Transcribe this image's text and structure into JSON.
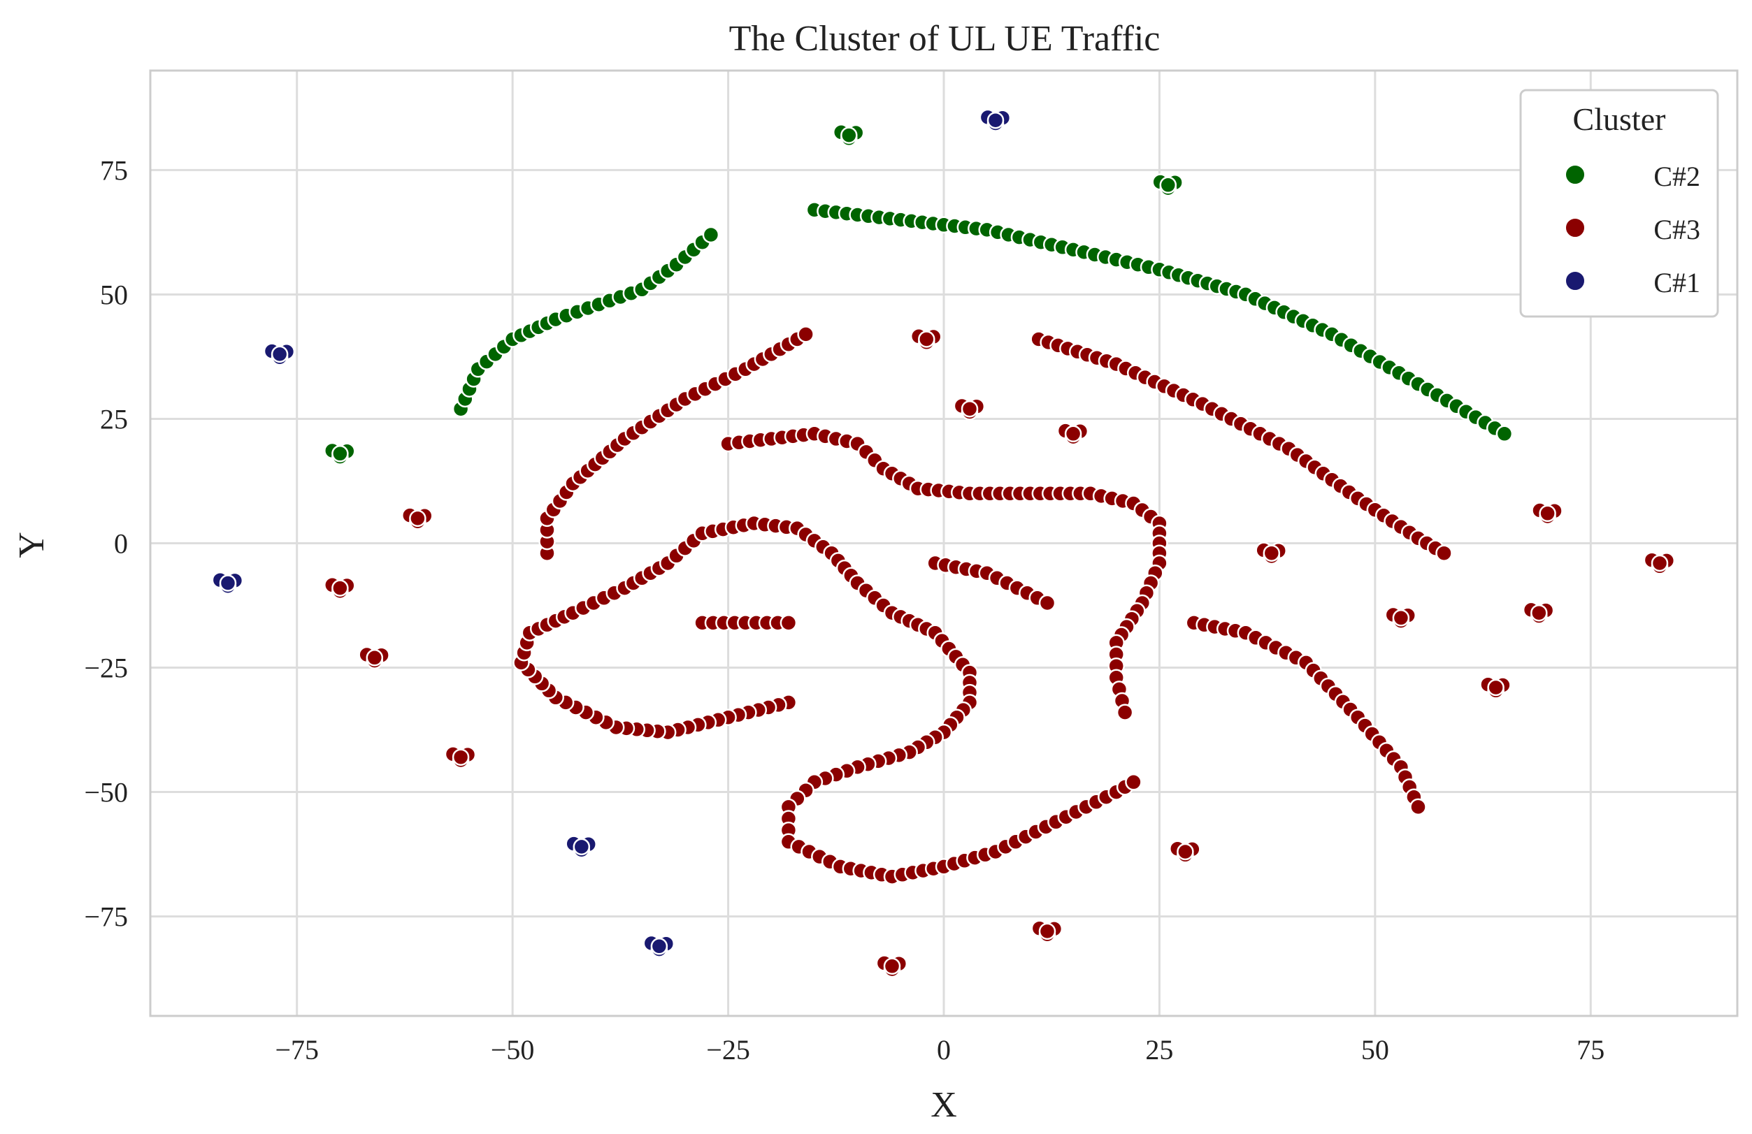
{
  "chart_data": {
    "type": "scatter",
    "title": "The Cluster of UL UE Traffic",
    "xlabel": "X",
    "ylabel": "Y",
    "xlim": [
      -92,
      92
    ],
    "ylim": [
      -95,
      95
    ],
    "x_ticks": [
      -75,
      -50,
      -25,
      0,
      25,
      50,
      75
    ],
    "y_ticks": [
      75,
      50,
      25,
      0,
      -25,
      -50,
      -75
    ],
    "x_tick_labels": [
      "−75",
      "−50",
      "−25",
      "0",
      "25",
      "50",
      "75"
    ],
    "y_tick_labels": [
      "75",
      "50",
      "25",
      "0",
      "−25",
      "−50",
      "−75"
    ],
    "grid": true,
    "legend": {
      "title": "Cluster",
      "position": "top-right",
      "entries": [
        {
          "label": "C#2",
          "color": "#006400"
        },
        {
          "label": "C#3",
          "color": "#8b0000"
        },
        {
          "label": "C#1",
          "color": "#191970"
        }
      ]
    },
    "series": [
      {
        "name": "C#2",
        "color": "#006400",
        "blobs": [
          [
            -11,
            82
          ],
          [
            26,
            72
          ],
          [
            -70,
            18
          ]
        ],
        "curves": [
          [
            [
              -56,
              27
            ],
            [
              -54,
              35
            ],
            [
              -50,
              41
            ],
            [
              -45,
              45
            ],
            [
              -40,
              48
            ],
            [
              -35,
              51
            ],
            [
              -31,
              56
            ],
            [
              -27,
              62
            ]
          ],
          [
            [
              -15,
              67
            ],
            [
              -5,
              65
            ],
            [
              5,
              63
            ],
            [
              15,
              59
            ],
            [
              25,
              55
            ],
            [
              35,
              50
            ],
            [
              45,
              42
            ],
            [
              55,
              32
            ],
            [
              65,
              22
            ]
          ]
        ]
      },
      {
        "name": "C#3",
        "color": "#8b0000",
        "blobs": [
          [
            -2,
            41
          ],
          [
            3,
            27
          ],
          [
            15,
            22
          ],
          [
            -61,
            5
          ],
          [
            -70,
            -9
          ],
          [
            -66,
            -23
          ],
          [
            -56,
            -43
          ],
          [
            38,
            -2
          ],
          [
            70,
            6
          ],
          [
            83,
            -4
          ],
          [
            53,
            -15
          ],
          [
            69,
            -14
          ],
          [
            64,
            -29
          ],
          [
            28,
            -62
          ],
          [
            12,
            -78
          ],
          [
            -6,
            -85
          ]
        ],
        "curves": [
          [
            [
              -46,
              -2
            ],
            [
              -46,
              5
            ],
            [
              -43,
              12
            ],
            [
              -37,
              21
            ],
            [
              -30,
              29
            ],
            [
              -23,
              35
            ],
            [
              -16,
              42
            ]
          ],
          [
            [
              -25,
              20
            ],
            [
              -20,
              21
            ],
            [
              -15,
              22
            ],
            [
              -10,
              20
            ],
            [
              -7,
              15
            ],
            [
              -3,
              11
            ],
            [
              3,
              10
            ],
            [
              10,
              10
            ],
            [
              17,
              10
            ],
            [
              22,
              8
            ],
            [
              25,
              4
            ],
            [
              25,
              -4
            ],
            [
              23,
              -12
            ],
            [
              20,
              -20
            ],
            [
              20,
              -27
            ],
            [
              21,
              -34
            ]
          ],
          [
            [
              11,
              41
            ],
            [
              20,
              36
            ],
            [
              30,
              28
            ],
            [
              40,
              19
            ],
            [
              48,
              9
            ],
            [
              55,
              1
            ],
            [
              58,
              -2
            ]
          ],
          [
            [
              -1,
              -4
            ],
            [
              5,
              -6
            ],
            [
              12,
              -12
            ]
          ],
          [
            [
              -28,
              -16
            ],
            [
              -23,
              -16
            ],
            [
              -18,
              -16
            ]
          ],
          [
            [
              29,
              -16
            ],
            [
              35,
              -18
            ],
            [
              42,
              -24
            ],
            [
              48,
              -35
            ],
            [
              53,
              -45
            ],
            [
              55,
              -53
            ]
          ],
          [
            [
              -18,
              -32
            ],
            [
              -25,
              -35
            ],
            [
              -32,
              -38
            ],
            [
              -38,
              -37
            ],
            [
              -45,
              -31
            ],
            [
              -49,
              -24
            ],
            [
              -48,
              -18
            ],
            [
              -43,
              -14
            ],
            [
              -37,
              -9
            ],
            [
              -32,
              -4
            ],
            [
              -28,
              2
            ],
            [
              -22,
              4
            ],
            [
              -17,
              3
            ],
            [
              -13,
              -2
            ],
            [
              -10,
              -8
            ],
            [
              -6,
              -14
            ],
            [
              -1,
              -18
            ],
            [
              3,
              -26
            ],
            [
              3,
              -32
            ],
            [
              0,
              -38
            ],
            [
              -4,
              -42
            ],
            [
              -10,
              -45
            ],
            [
              -15,
              -48
            ],
            [
              -18,
              -53
            ],
            [
              -18,
              -60
            ],
            [
              -12,
              -65
            ],
            [
              -6,
              -67
            ],
            [
              0,
              -65
            ],
            [
              6,
              -62
            ],
            [
              13,
              -56
            ],
            [
              20,
              -50
            ],
            [
              22,
              -48
            ]
          ]
        ]
      },
      {
        "name": "C#1",
        "color": "#191970",
        "blobs": [
          [
            6,
            85
          ],
          [
            -77,
            38
          ],
          [
            -83,
            -8
          ],
          [
            -42,
            -61
          ],
          [
            -33,
            -81
          ]
        ],
        "curves": []
      }
    ]
  }
}
